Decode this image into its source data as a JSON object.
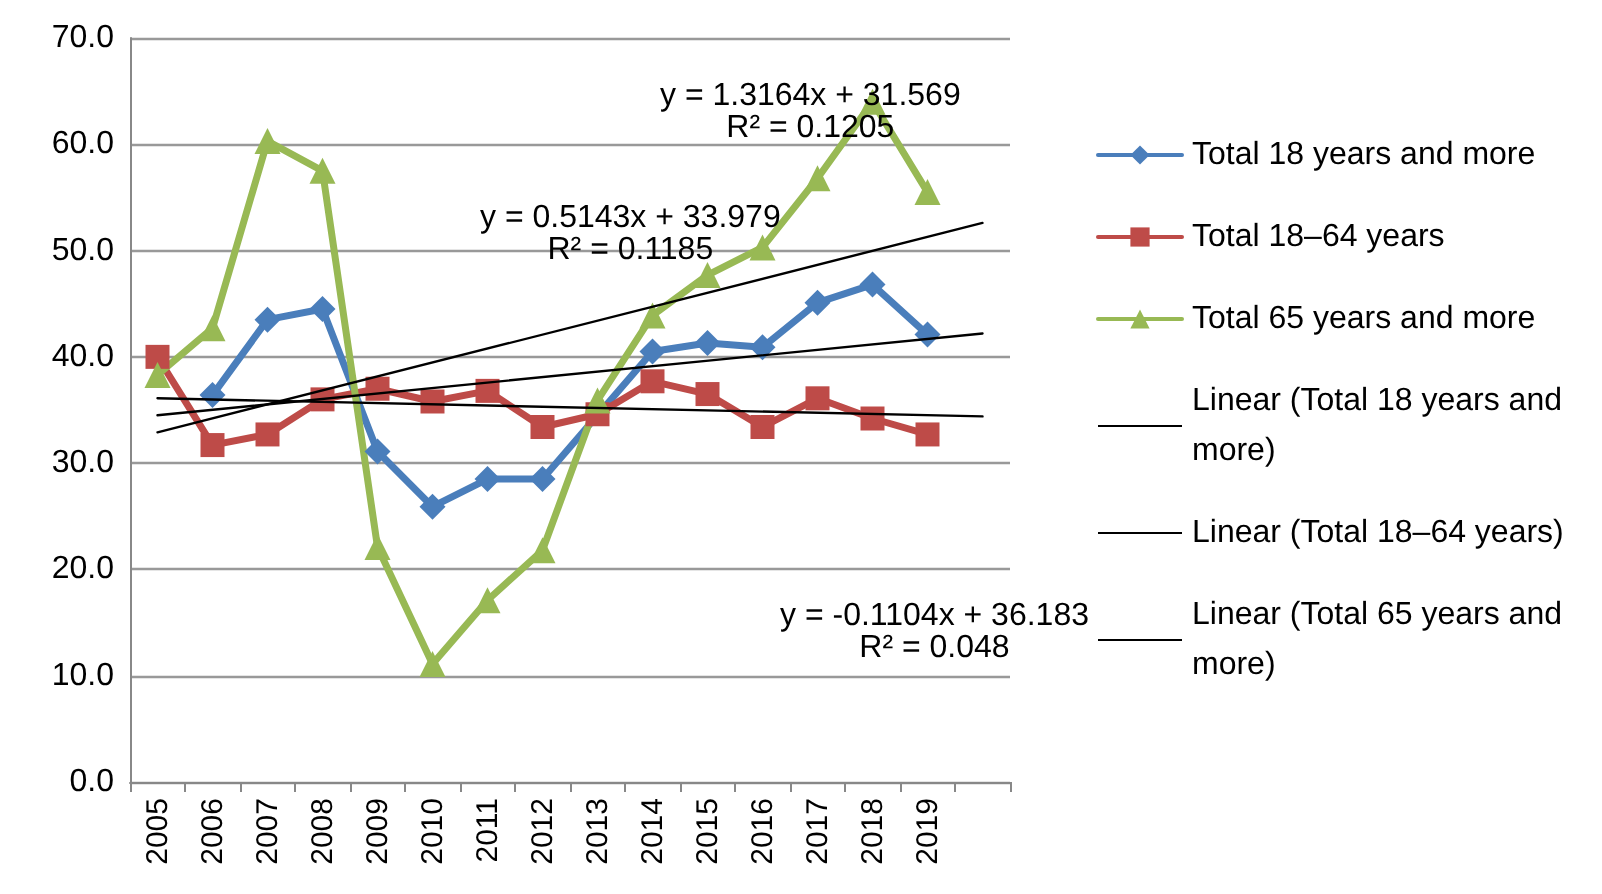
{
  "chart_data": {
    "type": "line",
    "categories": [
      "2005",
      "2006",
      "2007",
      "2008",
      "2009",
      "2010",
      "2011",
      "2012",
      "2013",
      "2014",
      "2015",
      "2016",
      "2017",
      "2018",
      "2019",
      null
    ],
    "ylim": [
      0,
      70
    ],
    "yticks": [
      {
        "value": 0,
        "label": "0.0"
      },
      {
        "value": 10,
        "label": "10.0"
      },
      {
        "value": 20,
        "label": "20.0"
      },
      {
        "value": 30,
        "label": "30.0"
      },
      {
        "value": 40,
        "label": "40.0"
      },
      {
        "value": 50,
        "label": "50.0"
      },
      {
        "value": 60,
        "label": "60.0"
      },
      {
        "value": 70,
        "label": "70.0"
      }
    ],
    "grid": "y",
    "legend": "right",
    "series": [
      {
        "name": "Total 18 years and more",
        "color": "#4a7ebb",
        "marker": "diamond",
        "values": [
          null,
          36.4,
          43.5,
          44.5,
          31.1,
          25.9,
          28.5,
          28.5,
          null,
          40.5,
          41.3,
          40.9,
          45.1,
          46.8,
          42.1,
          null
        ]
      },
      {
        "name": "Total 18–64 years",
        "color": "#be4b48",
        "marker": "square",
        "values": [
          40.0,
          31.7,
          32.7,
          36.0,
          37.0,
          35.8,
          36.8,
          33.4,
          34.6,
          37.7,
          36.5,
          33.4,
          36.1,
          34.2,
          32.7,
          null
        ]
      },
      {
        "name": "Total 65 years and more",
        "color": "#98b954",
        "marker": "triangle",
        "values": [
          38.3,
          42.7,
          60.3,
          57.5,
          22.1,
          11.1,
          17.1,
          21.8,
          35.9,
          43.9,
          47.7,
          50.3,
          56.8,
          64.0,
          55.5,
          null
        ]
      },
      {
        "name": "Linear (Total 18 years and more)",
        "color": "#000000",
        "marker": "none",
        "values": [
          34.5,
          null,
          null,
          null,
          null,
          null,
          null,
          null,
          null,
          null,
          null,
          null,
          null,
          null,
          null,
          42.2
        ]
      },
      {
        "name": "Linear (Total 18–64 years)",
        "color": "#000000",
        "marker": "none",
        "values": [
          36.1,
          null,
          null,
          null,
          null,
          null,
          null,
          null,
          null,
          null,
          null,
          null,
          null,
          null,
          null,
          34.4
        ]
      },
      {
        "name": "Linear (Total 65 years and more)",
        "color": "#000000",
        "marker": "none",
        "values": [
          32.9,
          null,
          null,
          null,
          null,
          null,
          null,
          null,
          null,
          null,
          null,
          null,
          null,
          null,
          null,
          52.6
        ]
      }
    ],
    "annotations": [
      "y = 1.3164x + 31.569\nR² = 0.1205",
      "y = 0.5143x + 33.979\nR² = 0.1185",
      "y = -0.1104x + 36.183\nR² = 0.048"
    ]
  }
}
